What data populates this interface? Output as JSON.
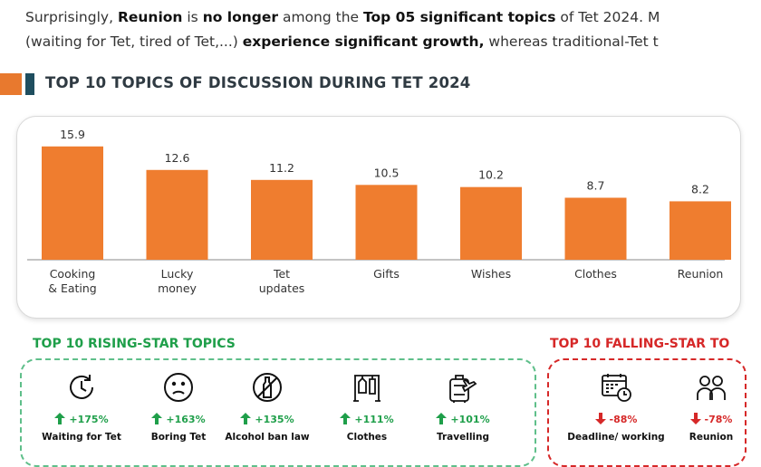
{
  "intro": {
    "line1": [
      {
        "text": "Surprisingly, ",
        "bold": false
      },
      {
        "text": "Reunion",
        "bold": true
      },
      {
        "text": "  is ",
        "bold": false
      },
      {
        "text": "no longer",
        "bold": true
      },
      {
        "text": "  among the ",
        "bold": false
      },
      {
        "text": "Top 05 significant topics",
        "bold": true
      },
      {
        "text": "    of Tet 2024. M",
        "bold": false
      }
    ],
    "line2": [
      {
        "text": "(waiting for Tet, tired of Tet,...) ",
        "bold": false
      },
      {
        "text": "experience significant growth,",
        "bold": true
      },
      {
        "text": "     whereas traditional-Tet t",
        "bold": false
      }
    ]
  },
  "section_title": "TOP 10 TOPICS OF DISCUSSION DURING TET 2024",
  "colors": {
    "bar": "#ef7d2f",
    "rising": "#1f9f4a",
    "falling": "#d62828",
    "title_bar": "#e8792e",
    "title_mark": "#1f4e5f"
  },
  "chart_data": {
    "type": "bar",
    "title": "TOP 10 TOPICS OF DISCUSSION DURING TET 2024",
    "categories": [
      [
        "Cooking",
        "& Eating"
      ],
      [
        "Lucky",
        "money"
      ],
      [
        "Tet",
        "updates"
      ],
      [
        "Gifts"
      ],
      [
        "Wishes"
      ],
      [
        "Clothes"
      ],
      [
        "Reunion"
      ]
    ],
    "values": [
      15.9,
      12.6,
      11.2,
      10.5,
      10.2,
      8.7,
      8.2
    ],
    "value_labels": [
      "15.9",
      "12.6",
      "11.2",
      "10.5",
      "10.2",
      "8.7",
      "8.2"
    ],
    "xlabel": "",
    "ylabel": "",
    "ylim": [
      0,
      16
    ],
    "grid": false,
    "legend": "none"
  },
  "rising": {
    "title": "TOP 10 RISING-STAR TOPICS",
    "items": [
      {
        "icon": "clock-back-icon",
        "pct": "+175%",
        "label": "Waiting for Tet"
      },
      {
        "icon": "sad-face-icon",
        "pct": "+163%",
        "label": "Boring Tet"
      },
      {
        "icon": "no-alcohol-icon",
        "pct": "+135%",
        "label": "Alcohol ban law"
      },
      {
        "icon": "clothes-rack-icon",
        "pct": "+111%",
        "label": "Clothes"
      },
      {
        "icon": "luggage-plane-icon",
        "pct": "+101%",
        "label": "Travelling"
      }
    ]
  },
  "falling": {
    "title": "TOP 10 FALLING-STAR TO",
    "items": [
      {
        "icon": "calendar-clock-icon",
        "pct": "-88%",
        "label": "Deadline/ working"
      },
      {
        "icon": "family-icon",
        "pct": "-78%",
        "label": "Reunion"
      }
    ]
  }
}
